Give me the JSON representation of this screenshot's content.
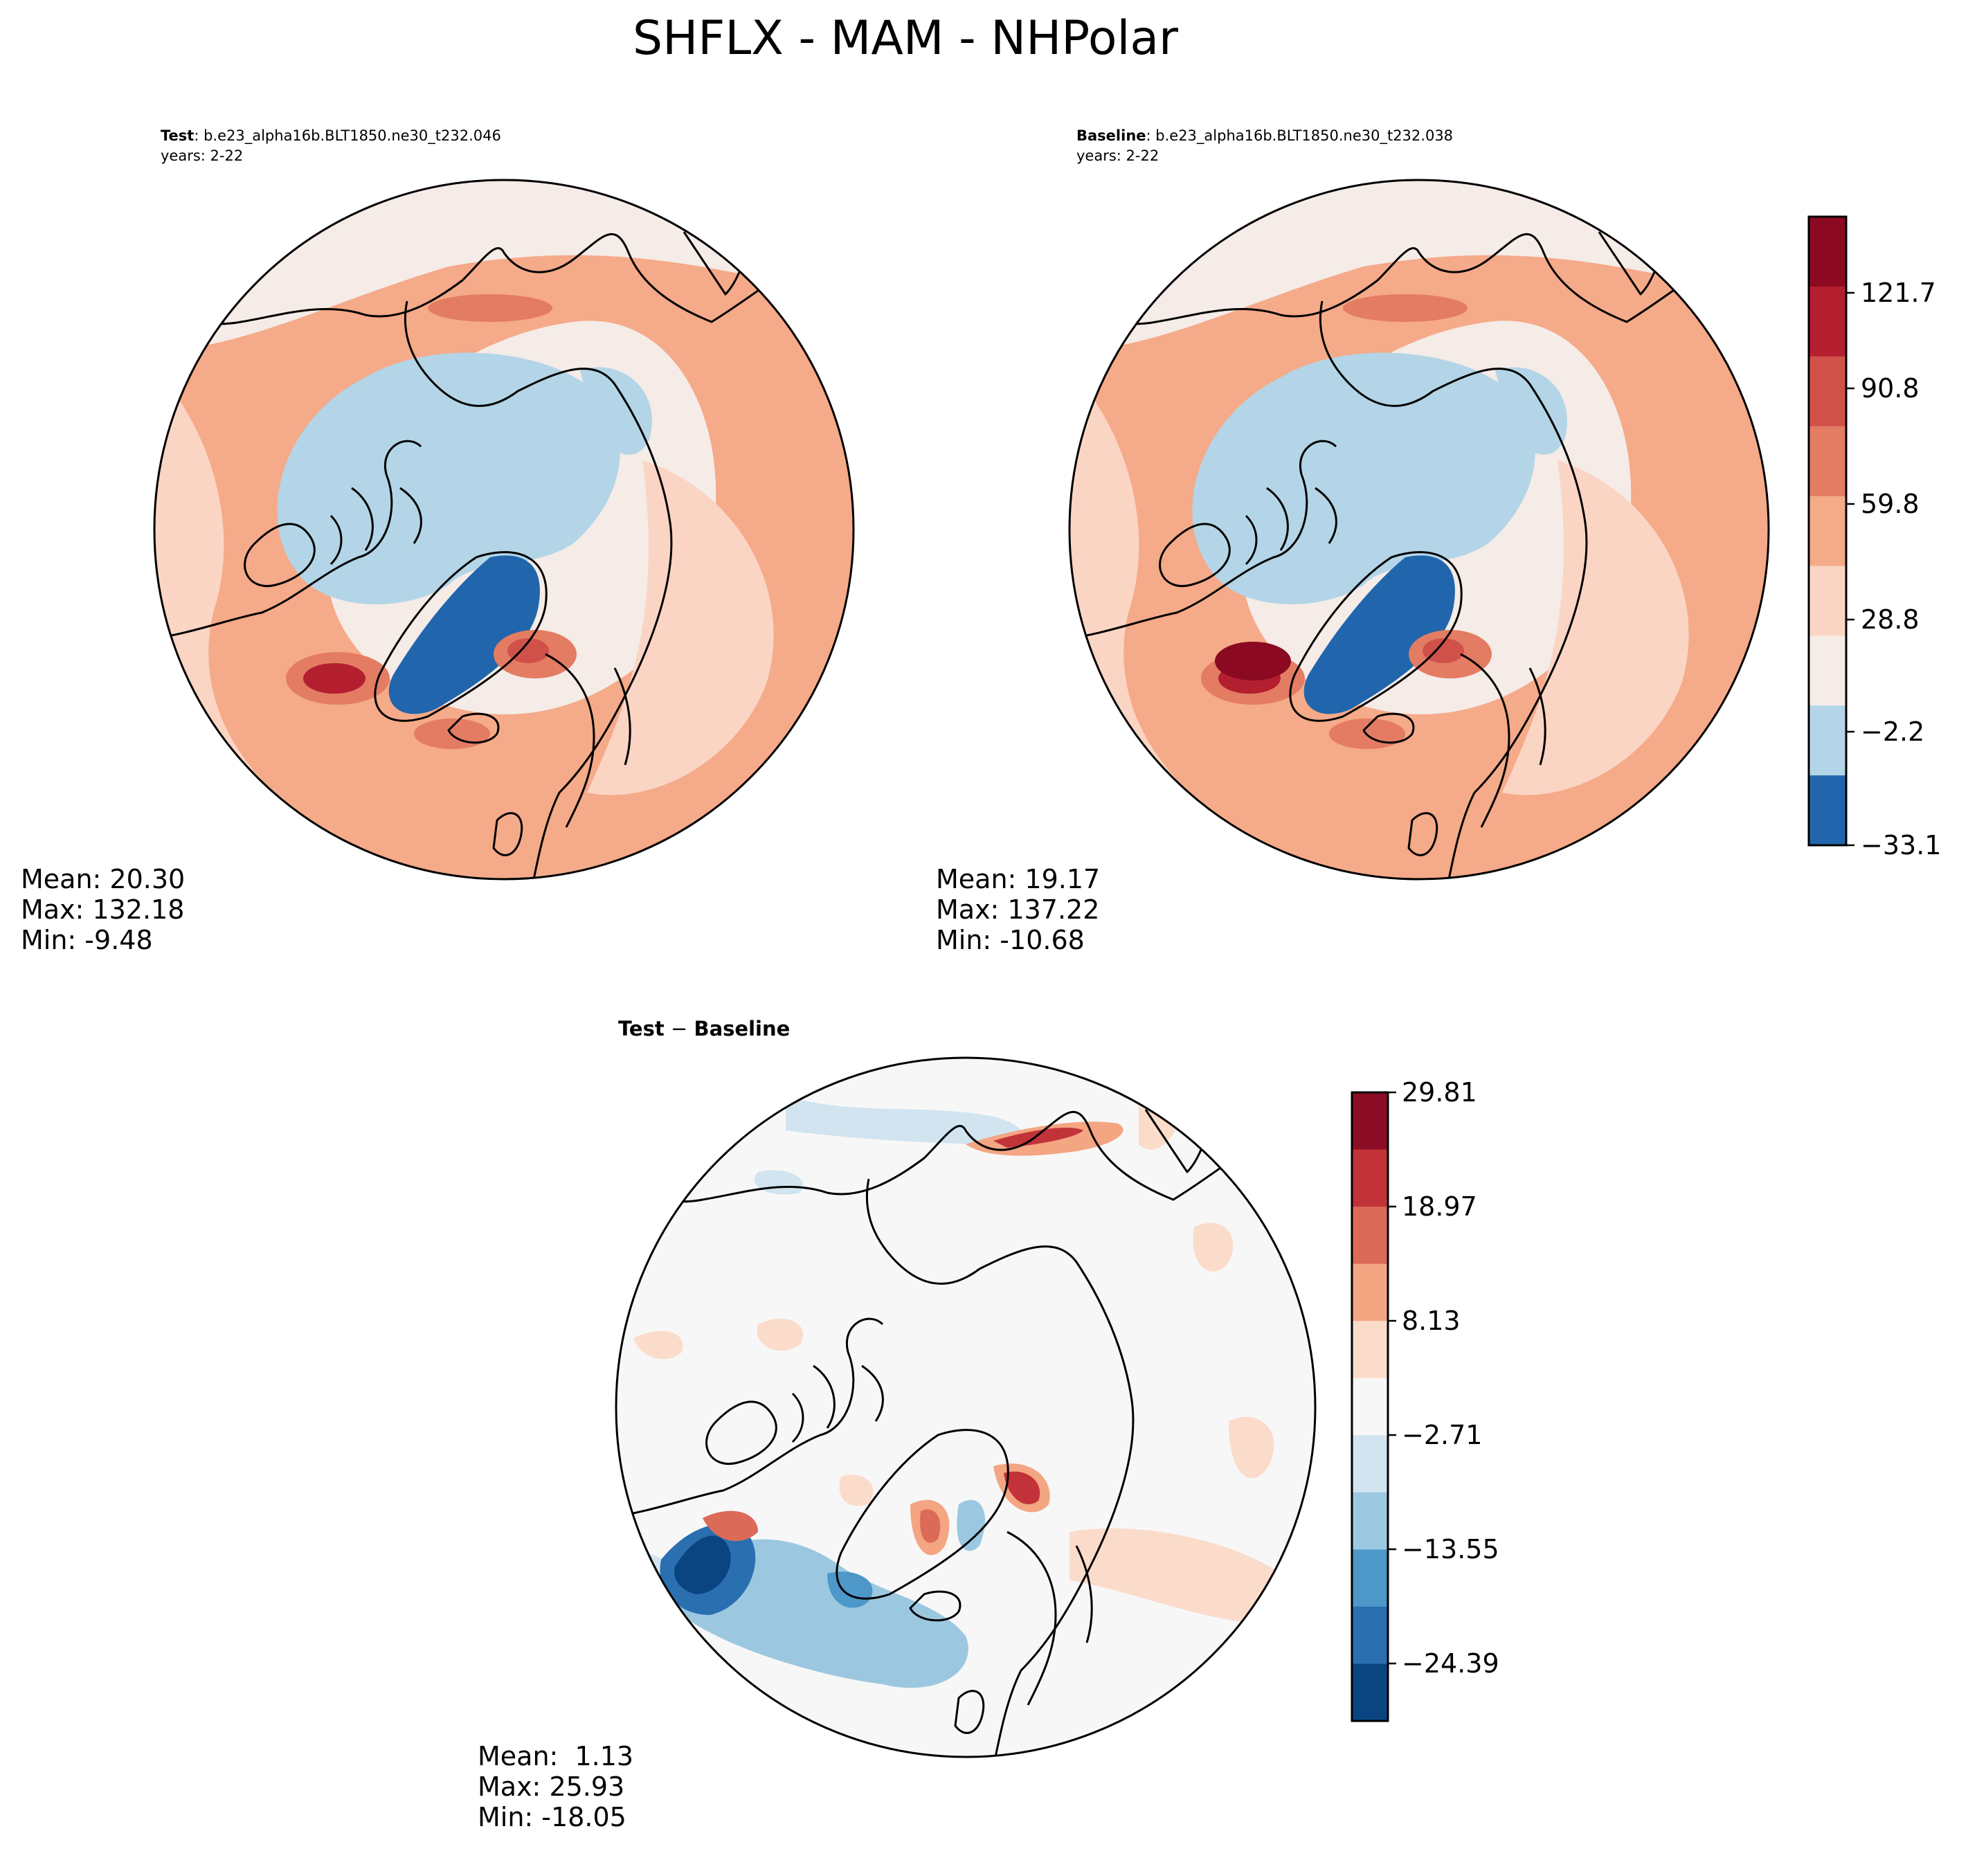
{
  "title": "SHFLX - MAM - NHPolar",
  "colors": {
    "main_levels": [
      "#2166ac",
      "#b3d5e7",
      "#f5ebe7",
      "#fbd5c4",
      "#f5aa89",
      "#e37c63",
      "#d0514a",
      "#b41f30",
      "#8b0a22"
    ],
    "diff_levels": [
      "#0a4582",
      "#2a6fb0",
      "#4d98c9",
      "#9bc8e0",
      "#d1e4f0",
      "#f7f7f7",
      "#fbdccb",
      "#f4a582",
      "#db6b58",
      "#c23339",
      "#8d0c25"
    ],
    "land_outline": "#000000"
  },
  "panels": {
    "test": {
      "label_bold": "Test",
      "label_rest": ": b.e23_alpha16b.BLT1850.ne30_t232.046",
      "years": "years: 2-22",
      "stats": {
        "mean": "Mean: 20.30",
        "max": "Max: 132.18",
        "min": "Min: -9.48"
      }
    },
    "baseline": {
      "label_bold": "Baseline",
      "label_rest": ": b.e23_alpha16b.BLT1850.ne30_t232.038",
      "years": "years: 2-22",
      "stats": {
        "mean": "Mean: 19.17",
        "max": "Max: 137.22",
        "min": "Min: -10.68"
      }
    },
    "diff": {
      "label_bold": "Test",
      "label_rest": " − ",
      "label_bold2": "Baseline",
      "stats": {
        "mean": "Mean:  1.13",
        "max": "Max: 25.93",
        "min": "Min: -18.05"
      }
    }
  },
  "colorbars": {
    "main": {
      "ticks": [
        "121.7",
        "90.8",
        "59.8",
        "28.8",
        "−2.2",
        "−33.1"
      ]
    },
    "diff": {
      "ticks": [
        "29.81",
        "18.97",
        "8.13",
        "−2.71",
        "−13.55",
        "−24.39"
      ]
    }
  }
}
